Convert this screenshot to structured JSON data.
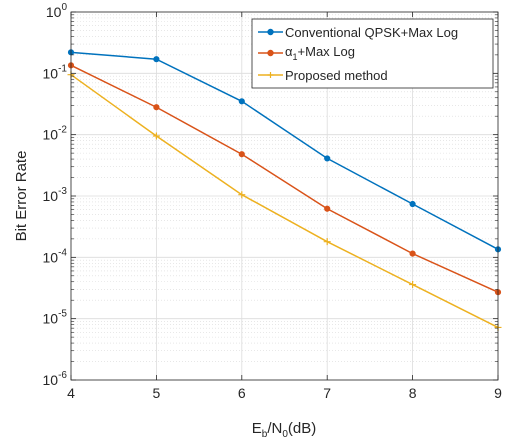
{
  "chart_data": {
    "type": "line",
    "x": [
      4,
      5,
      6,
      7,
      8,
      9
    ],
    "xlim": [
      4,
      9
    ],
    "ylim": [
      1e-06,
      1
    ],
    "yscale": "log",
    "grid": true,
    "minor_grid": true,
    "x_ticks": [
      "4",
      "5",
      "6",
      "7",
      "8",
      "9"
    ],
    "y_ticks": [
      {
        "base": "10",
        "exp": "0"
      },
      {
        "base": "10",
        "exp": "-1"
      },
      {
        "base": "10",
        "exp": "-2"
      },
      {
        "base": "10",
        "exp": "-3"
      },
      {
        "base": "10",
        "exp": "-4"
      },
      {
        "base": "10",
        "exp": "-5"
      },
      {
        "base": "10",
        "exp": "-6"
      }
    ],
    "xlabel": {
      "main": "E",
      "sub": "b",
      "mid": "/N",
      "sub2": "0",
      "tail": "(dB)"
    },
    "ylabel": "Bit Error Rate",
    "legend_position": "top-right",
    "series": [
      {
        "name": "Conventional QPSK+Max Log",
        "color": "#0072BD",
        "marker": "circle",
        "values": [
          0.22,
          0.17,
          0.035,
          0.0041,
          0.00074,
          0.000135
        ]
      },
      {
        "name": "α1+Max Log",
        "name_parts": {
          "pre": "α",
          "sub": "1",
          "post": "+Max Log"
        },
        "color": "#D95319",
        "marker": "circle",
        "values": [
          0.135,
          0.028,
          0.0048,
          0.00062,
          0.000115,
          2.7e-05
        ]
      },
      {
        "name": "Proposed method",
        "color": "#EDB120",
        "marker": "plus",
        "values": [
          0.095,
          0.0095,
          0.00105,
          0.00018,
          3.6e-05,
          7.2e-06
        ]
      }
    ]
  }
}
